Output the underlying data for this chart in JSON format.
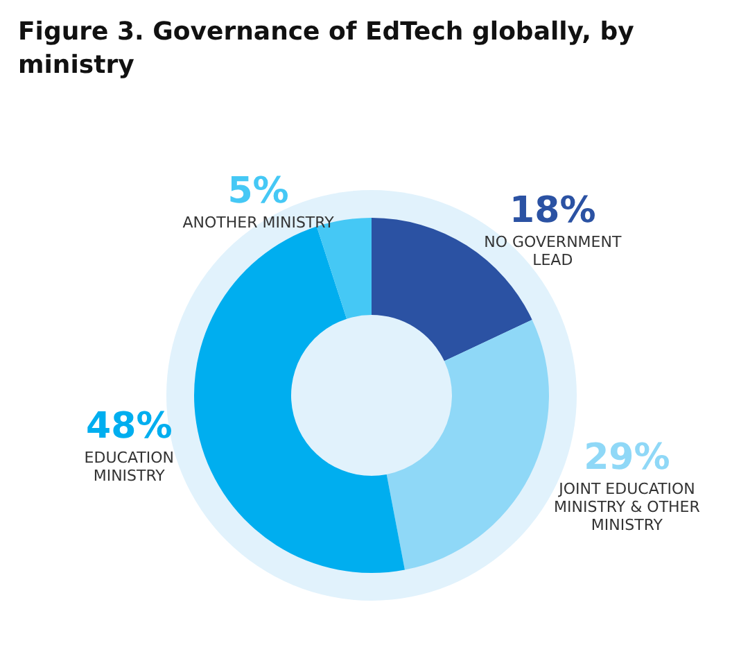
{
  "chart_data": {
    "type": "donut",
    "title": "Figure 3. Governance of EdTech globally, by ministry",
    "categories": [
      "NO GOVERNMENT LEAD",
      "JOINT EDUCATION MINISTRY & OTHER MINISTRY",
      "EDUCATION MINISTRY",
      "ANOTHER MINISTRY"
    ],
    "values": [
      18,
      29,
      48,
      5
    ],
    "colors": [
      "#2b52a3",
      "#8fd8f7",
      "#00aeef",
      "#45c8f5"
    ],
    "value_labels": [
      "18%",
      "29%",
      "48%",
      "5%"
    ],
    "legend": false
  }
}
